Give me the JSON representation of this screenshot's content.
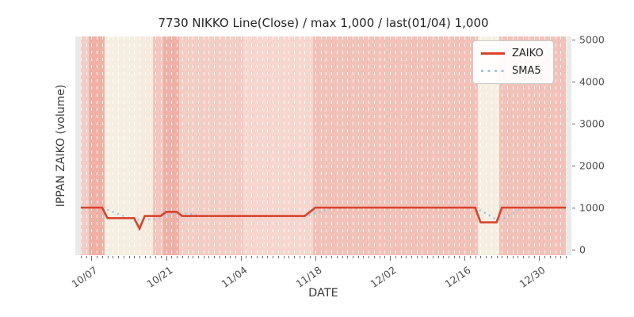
{
  "accent_colors": {
    "zaiko_line": "#d8432c",
    "sma5_line": "#a6c4de",
    "axes_background": "#eaeaea",
    "tick_color": "#707070"
  },
  "chart_data": {
    "type": "line",
    "title": "7730 NIKKO Line(Close) / max 1,000 / last(01/04) 1,000",
    "xlabel": "DATE",
    "ylabel": "IPPAN ZAIKO (volume)",
    "ylim": [
      0,
      5000
    ],
    "yticks": [
      0,
      1000,
      2000,
      3000,
      4000,
      5000
    ],
    "ytick_labels": [
      "0",
      "1000",
      "2000",
      "3000",
      "4000",
      "5000"
    ],
    "x_start_date": "10/05",
    "x_end_date": "01/04",
    "n_points": 92,
    "xticks": [
      {
        "label": "10/07",
        "day": 2
      },
      {
        "label": "10/21",
        "day": 16
      },
      {
        "label": "11/04",
        "day": 30
      },
      {
        "label": "11/18",
        "day": 44
      },
      {
        "label": "12/02",
        "day": 58
      },
      {
        "label": "12/16",
        "day": 72
      },
      {
        "label": "12/30",
        "day": 86
      }
    ],
    "legend_position": "upper right",
    "grid": "vertical-daily-white-dashed",
    "series": [
      {
        "name": "ZAIKO",
        "style": "solid",
        "color": "#d8432c",
        "values": [
          1000,
          1000,
          1000,
          1000,
          1000,
          750,
          750,
          750,
          750,
          750,
          750,
          500,
          800,
          800,
          800,
          800,
          900,
          900,
          900,
          800,
          800,
          800,
          800,
          800,
          800,
          800,
          800,
          800,
          800,
          800,
          800,
          800,
          800,
          800,
          800,
          800,
          800,
          800,
          800,
          800,
          800,
          800,
          800,
          900,
          1000,
          1000,
          1000,
          1000,
          1000,
          1000,
          1000,
          1000,
          1000,
          1000,
          1000,
          1000,
          1000,
          1000,
          1000,
          1000,
          1000,
          1000,
          1000,
          1000,
          1000,
          1000,
          1000,
          1000,
          1000,
          1000,
          1000,
          1000,
          1000,
          1000,
          1000,
          650,
          650,
          650,
          650,
          1000,
          1000,
          1000,
          1000,
          1000,
          1000,
          1000,
          1000,
          1000,
          1000,
          1000,
          1000,
          1000
        ]
      },
      {
        "name": "SMA5",
        "style": "dotted",
        "color": "#a6c4de",
        "values": [
          null,
          null,
          null,
          null,
          1000,
          950,
          900,
          850,
          800,
          750,
          750,
          700,
          710,
          720,
          730,
          740,
          820,
          840,
          860,
          860,
          860,
          840,
          820,
          800,
          800,
          800,
          800,
          800,
          800,
          800,
          800,
          800,
          800,
          800,
          800,
          800,
          800,
          800,
          800,
          800,
          800,
          800,
          800,
          820,
          860,
          900,
          940,
          980,
          1000,
          1000,
          1000,
          1000,
          1000,
          1000,
          1000,
          1000,
          1000,
          1000,
          1000,
          1000,
          1000,
          1000,
          1000,
          1000,
          1000,
          1000,
          1000,
          1000,
          1000,
          1000,
          1000,
          1000,
          1000,
          1000,
          1000,
          930,
          860,
          790,
          720,
          720,
          790,
          860,
          930,
          1000,
          1000,
          1000,
          1000,
          1000,
          1000,
          1000,
          1000,
          1000
        ]
      }
    ],
    "background_bands": [
      {
        "from": 0,
        "to": 1.5,
        "color": "#f4cdc5"
      },
      {
        "from": 1.5,
        "to": 4.5,
        "color": "#efb1a6"
      },
      {
        "from": 4.5,
        "to": 10.5,
        "color": "#f5efe1"
      },
      {
        "from": 10.5,
        "to": 13.5,
        "color": "#f7eadf"
      },
      {
        "from": 13.5,
        "to": 15.5,
        "color": "#f4c7be"
      },
      {
        "from": 15.5,
        "to": 18.5,
        "color": "#efb1a6"
      },
      {
        "from": 18.5,
        "to": 30.5,
        "color": "#f4cdc5"
      },
      {
        "from": 30.5,
        "to": 43.5,
        "color": "#f6d6cf"
      },
      {
        "from": 43.5,
        "to": 74.5,
        "color": "#f2c2b9"
      },
      {
        "from": 74.5,
        "to": 78.5,
        "color": "#f5efe1"
      },
      {
        "from": 78.5,
        "to": 91,
        "color": "#f2c2b9"
      }
    ]
  }
}
